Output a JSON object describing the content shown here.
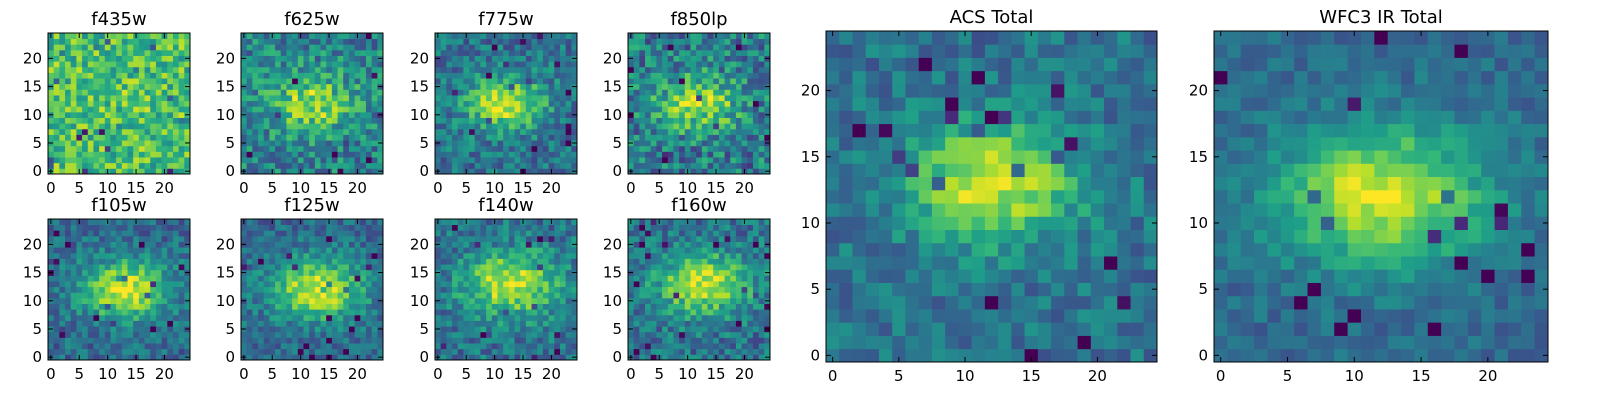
{
  "colormap": {
    "name": "viridis",
    "stops": [
      "#440154",
      "#482878",
      "#3e4989",
      "#31688e",
      "#26828e",
      "#1f9e89",
      "#35b779",
      "#6ece58",
      "#b5de2b",
      "#fde725"
    ]
  },
  "chart_data": [
    {
      "type": "heatmap",
      "title": "f435w",
      "xticks": [
        "0",
        "5",
        "10",
        "15",
        "20"
      ],
      "yticks": [
        "0",
        "5",
        "10",
        "15",
        "20"
      ],
      "xlim": [
        0,
        25
      ],
      "ylim": [
        0,
        25
      ],
      "grid_size": 25,
      "blob": {
        "peak": [
          12,
          12
        ],
        "amplitude": 0.02,
        "width": 4.5
      },
      "base_level": 0.7,
      "noise": 0.22,
      "seed": 101
    },
    {
      "type": "heatmap",
      "title": "f625w",
      "xticks": [
        "0",
        "5",
        "10",
        "15",
        "20"
      ],
      "yticks": [
        "0",
        "5",
        "10",
        "15",
        "20"
      ],
      "xlim": [
        0,
        25
      ],
      "ylim": [
        0,
        25
      ],
      "grid_size": 25,
      "blob": {
        "peak": [
          12,
          12
        ],
        "amplitude": 0.4,
        "width": 4.0
      },
      "base_level": 0.45,
      "noise": 0.22,
      "seed": 202
    },
    {
      "type": "heatmap",
      "title": "f775w",
      "xticks": [
        "0",
        "5",
        "10",
        "15",
        "20"
      ],
      "yticks": [
        "0",
        "5",
        "10",
        "15",
        "20"
      ],
      "xlim": [
        0,
        25
      ],
      "ylim": [
        0,
        25
      ],
      "grid_size": 25,
      "blob": {
        "peak": [
          12,
          12
        ],
        "amplitude": 0.55,
        "width": 3.8
      },
      "base_level": 0.38,
      "noise": 0.18,
      "seed": 303
    },
    {
      "type": "heatmap",
      "title": "f850lp",
      "xticks": [
        "0",
        "5",
        "10",
        "15",
        "20"
      ],
      "yticks": [
        "0",
        "5",
        "10",
        "15",
        "20"
      ],
      "xlim": [
        0,
        25
      ],
      "ylim": [
        0,
        25
      ],
      "grid_size": 25,
      "blob": {
        "peak": [
          12,
          12
        ],
        "amplitude": 0.45,
        "width": 3.8
      },
      "base_level": 0.42,
      "noise": 0.24,
      "seed": 404
    },
    {
      "type": "heatmap",
      "title": "f105w",
      "xticks": [
        "0",
        "5",
        "10",
        "15",
        "20"
      ],
      "yticks": [
        "0",
        "5",
        "10",
        "15",
        "20"
      ],
      "xlim": [
        0,
        25
      ],
      "ylim": [
        0,
        25
      ],
      "grid_size": 25,
      "blob": {
        "peak": [
          13,
          12
        ],
        "amplitude": 0.6,
        "width": 4.2
      },
      "base_level": 0.35,
      "noise": 0.16,
      "seed": 505
    },
    {
      "type": "heatmap",
      "title": "f125w",
      "xticks": [
        "0",
        "5",
        "10",
        "15",
        "20"
      ],
      "yticks": [
        "0",
        "5",
        "10",
        "15",
        "20"
      ],
      "xlim": [
        0,
        25
      ],
      "ylim": [
        0,
        25
      ],
      "grid_size": 25,
      "blob": {
        "peak": [
          13,
          12
        ],
        "amplitude": 0.6,
        "width": 4.4
      },
      "base_level": 0.35,
      "noise": 0.15,
      "seed": 606
    },
    {
      "type": "heatmap",
      "title": "f140w",
      "xticks": [
        "0",
        "5",
        "10",
        "15",
        "20"
      ],
      "yticks": [
        "0",
        "5",
        "10",
        "15",
        "20"
      ],
      "xlim": [
        0,
        25
      ],
      "ylim": [
        0,
        25
      ],
      "grid_size": 25,
      "blob": {
        "peak": [
          13,
          13
        ],
        "amplitude": 0.55,
        "width": 4.6
      },
      "base_level": 0.38,
      "noise": 0.18,
      "seed": 707
    },
    {
      "type": "heatmap",
      "title": "f160w",
      "xticks": [
        "0",
        "5",
        "10",
        "15",
        "20"
      ],
      "yticks": [
        "0",
        "5",
        "10",
        "15",
        "20"
      ],
      "xlim": [
        0,
        25
      ],
      "ylim": [
        0,
        25
      ],
      "grid_size": 25,
      "blob": {
        "peak": [
          13,
          13
        ],
        "amplitude": 0.55,
        "width": 4.4
      },
      "base_level": 0.38,
      "noise": 0.18,
      "seed": 808
    },
    {
      "type": "heatmap",
      "title": "ACS Total",
      "xticks": [
        "0",
        "5",
        "10",
        "15",
        "20"
      ],
      "yticks": [
        "0",
        "5",
        "10",
        "15",
        "20"
      ],
      "xlim": [
        0,
        25
      ],
      "ylim": [
        0,
        25
      ],
      "grid_size": 25,
      "blob": {
        "peak": [
          12,
          13
        ],
        "amplitude": 0.55,
        "width": 3.6
      },
      "base_level": 0.38,
      "noise": 0.14,
      "seed": 909
    },
    {
      "type": "heatmap",
      "title": "WFC3 IR Total",
      "xticks": [
        "0",
        "5",
        "10",
        "15",
        "20"
      ],
      "yticks": [
        "0",
        "5",
        "10",
        "15",
        "20"
      ],
      "xlim": [
        0,
        25
      ],
      "ylim": [
        0,
        25
      ],
      "grid_size": 25,
      "blob": {
        "peak": [
          12,
          12
        ],
        "amplitude": 0.6,
        "width": 4.2
      },
      "base_level": 0.35,
      "noise": 0.1,
      "seed": 1010
    }
  ]
}
